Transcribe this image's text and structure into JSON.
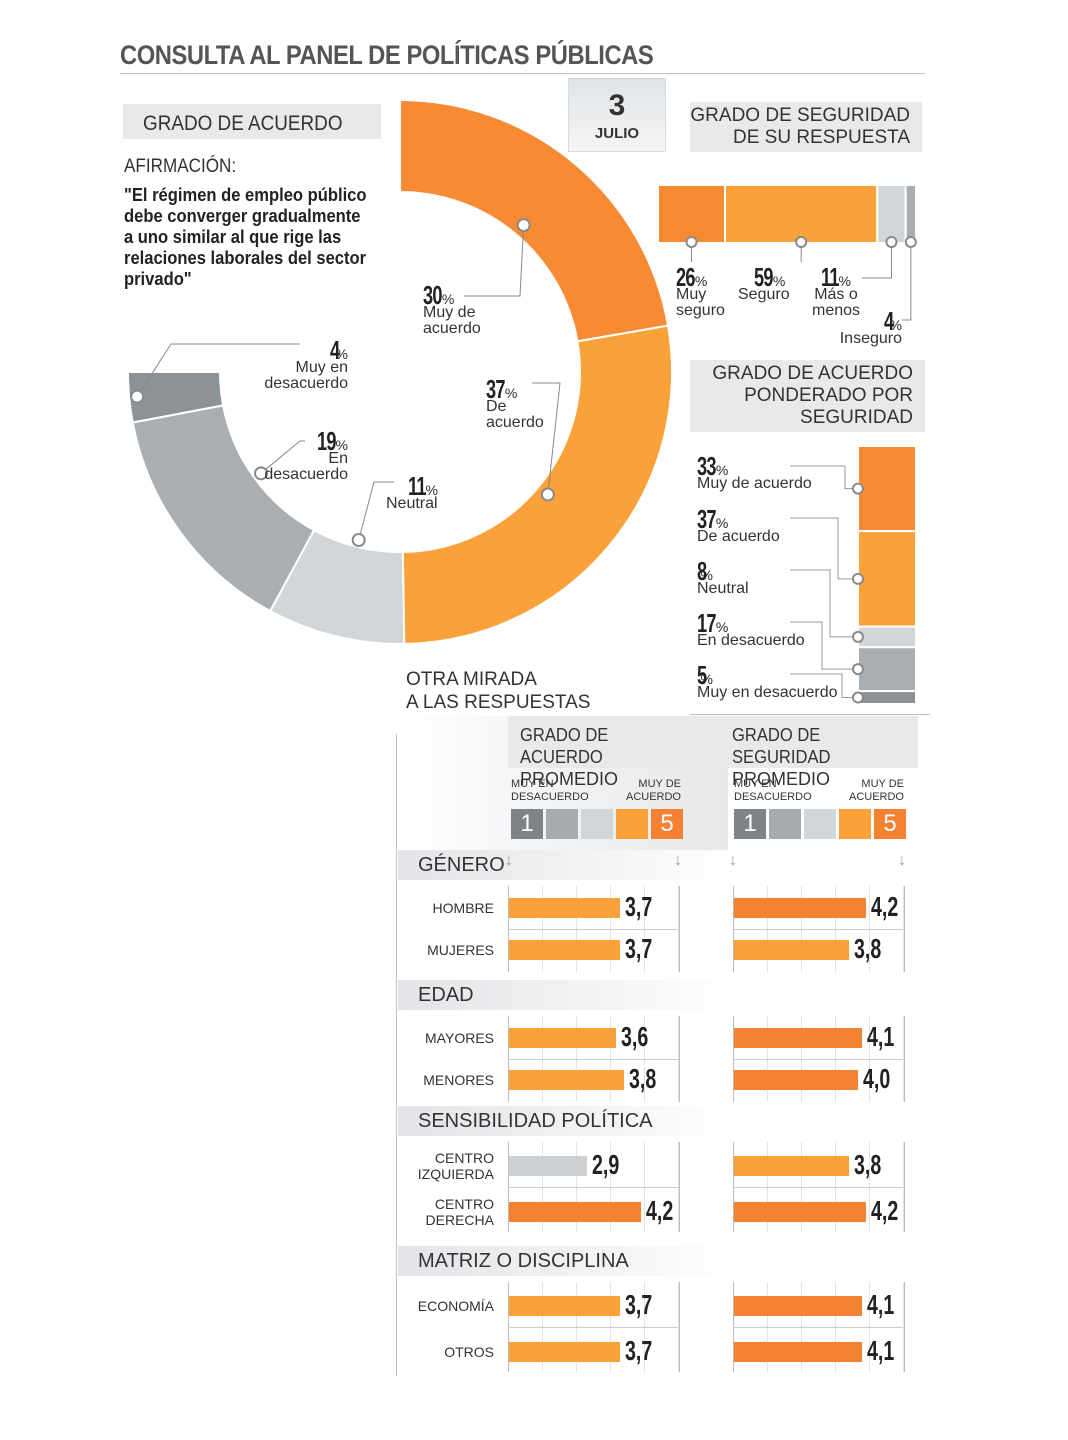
{
  "header": {
    "title": "CONSULTA AL PANEL DE POLÍTICAS PÚBLICAS",
    "day": "3",
    "month": "JULIO"
  },
  "colors": {
    "muy_de_acuerdo": "#f68b33",
    "de_acuerdo": "#fba13a",
    "neutral": "#d3d6d9",
    "en_desacuerdo": "#a9aeb2",
    "muy_en_desacuerdo": "#8c9296",
    "bar_orange_dark": "#f58232",
    "bar_orange_light": "#fba13a",
    "bar_gray": "#cdd0d3"
  },
  "agreement": {
    "box_label": "GRADO DE ACUERDO",
    "statement_label": "AFIRMACIÓN:",
    "statement": "\"El régimen de empleo público debe converger gradualmente a uno similar al que rige las relaciones laborales del sector privado\""
  },
  "security": {
    "box_label_line1": "GRADO DE SEGURIDAD",
    "box_label_line2": "DE SU RESPUESTA"
  },
  "weighted": {
    "box_label_line1": "GRADO DE ACUERDO",
    "box_label_line2": "PONDERADO POR",
    "box_label_line3": "SEGURIDAD"
  },
  "other": {
    "title_line1": "OTRA MIRADA",
    "title_line2": "A LAS RESPUESTAS",
    "col1_line1": "GRADO DE ACUERDO",
    "col1_line2": "PROMEDIO",
    "col2_line1": "GRADO DE SEGURIDAD",
    "col2_line2": "PROMEDIO",
    "scale_low_line1": "MUY EN",
    "scale_low_line2": "DESACUERDO",
    "scale_high_line1": "MUY DE",
    "scale_high_line2": "ACUERDO",
    "scale_min": "1",
    "scale_max": "5"
  },
  "chart_data": [
    {
      "type": "pie",
      "title": "GRADO DE ACUERDO",
      "series": [
        {
          "name": "Muy de acuerdo",
          "value": 30,
          "label_value": "30",
          "unit": "%",
          "label_line1": "Muy de",
          "label_line2": "acuerdo"
        },
        {
          "name": "De acuerdo",
          "value": 37,
          "label_value": "37",
          "unit": "%",
          "label_line1": "De",
          "label_line2": "acuerdo"
        },
        {
          "name": "Neutral",
          "value": 11,
          "label_value": "11",
          "unit": "%",
          "label_line1": "Neutral",
          "label_line2": ""
        },
        {
          "name": "En desacuerdo",
          "value": 19,
          "label_value": "19",
          "unit": "%",
          "label_line1": "En",
          "label_line2": "desacuerdo"
        },
        {
          "name": "Muy en desacuerdo",
          "value": 4,
          "label_value": "4",
          "unit": "%",
          "label_line1": "Muy en",
          "label_line2": "desacuerdo"
        }
      ]
    },
    {
      "type": "bar",
      "title": "GRADO DE SEGURIDAD DE SU RESPUESTA",
      "stacked": true,
      "series": [
        {
          "name": "Muy seguro",
          "value": 26,
          "label_value": "26",
          "unit": "%",
          "label_line1": "Muy",
          "label_line2": "seguro"
        },
        {
          "name": "Seguro",
          "value": 59,
          "label_value": "59",
          "unit": "%",
          "label_line1": "Seguro",
          "label_line2": ""
        },
        {
          "name": "Más o menos",
          "value": 11,
          "label_value": "11",
          "unit": "%",
          "label_line1": "Más o",
          "label_line2": "menos"
        },
        {
          "name": "Inseguro",
          "value": 4,
          "label_value": "4",
          "unit": "%",
          "label_line1": "Inseguro",
          "label_line2": ""
        }
      ]
    },
    {
      "type": "bar",
      "title": "GRADO DE ACUERDO PONDERADO POR SEGURIDAD",
      "stacked": true,
      "series": [
        {
          "name": "Muy de acuerdo",
          "value": 33,
          "label_value": "33",
          "unit": "%"
        },
        {
          "name": "De acuerdo",
          "value": 37,
          "label_value": "37",
          "unit": "%"
        },
        {
          "name": "Neutral",
          "value": 8,
          "label_value": "8",
          "unit": "%"
        },
        {
          "name": "En desacuerdo",
          "value": 17,
          "label_value": "17",
          "unit": "%"
        },
        {
          "name": "Muy en desacuerdo",
          "value": 5,
          "label_value": "5",
          "unit": "%"
        }
      ]
    },
    {
      "type": "bar",
      "title": "OTRA MIRADA A LAS RESPUESTAS",
      "xlim": [
        1,
        5
      ],
      "groups": [
        {
          "name": "GÉNERO",
          "rows": [
            {
              "label_line1": "HOMBRE",
              "label_line2": "",
              "acuerdo": 3.7,
              "acuerdo_label": "3,7",
              "seguridad": 4.2,
              "seguridad_label": "4,2"
            },
            {
              "label_line1": "MUJERES",
              "label_line2": "",
              "acuerdo": 3.7,
              "acuerdo_label": "3,7",
              "seguridad": 3.8,
              "seguridad_label": "3,8"
            }
          ]
        },
        {
          "name": "EDAD",
          "rows": [
            {
              "label_line1": "MAYORES",
              "label_line2": "",
              "acuerdo": 3.6,
              "acuerdo_label": "3,6",
              "seguridad": 4.1,
              "seguridad_label": "4,1"
            },
            {
              "label_line1": "MENORES",
              "label_line2": "",
              "acuerdo": 3.8,
              "acuerdo_label": "3,8",
              "seguridad": 4.0,
              "seguridad_label": "4,0"
            }
          ]
        },
        {
          "name": "SENSIBILIDAD POLÍTICA",
          "rows": [
            {
              "label_line1": "CENTRO",
              "label_line2": "IZQUIERDA",
              "acuerdo": 2.9,
              "acuerdo_label": "2,9",
              "seguridad": 3.8,
              "seguridad_label": "3,8"
            },
            {
              "label_line1": "CENTRO",
              "label_line2": "DERECHA",
              "acuerdo": 4.2,
              "acuerdo_label": "4,2",
              "seguridad": 4.2,
              "seguridad_label": "4,2"
            }
          ]
        },
        {
          "name": "MATRIZ O DISCIPLINA",
          "rows": [
            {
              "label_line1": "ECONOMÍA",
              "label_line2": "",
              "acuerdo": 3.7,
              "acuerdo_label": "3,7",
              "seguridad": 4.1,
              "seguridad_label": "4,1"
            },
            {
              "label_line1": "OTROS",
              "label_line2": "",
              "acuerdo": 3.7,
              "acuerdo_label": "3,7",
              "seguridad": 4.1,
              "seguridad_label": "4,1"
            }
          ]
        }
      ]
    }
  ]
}
